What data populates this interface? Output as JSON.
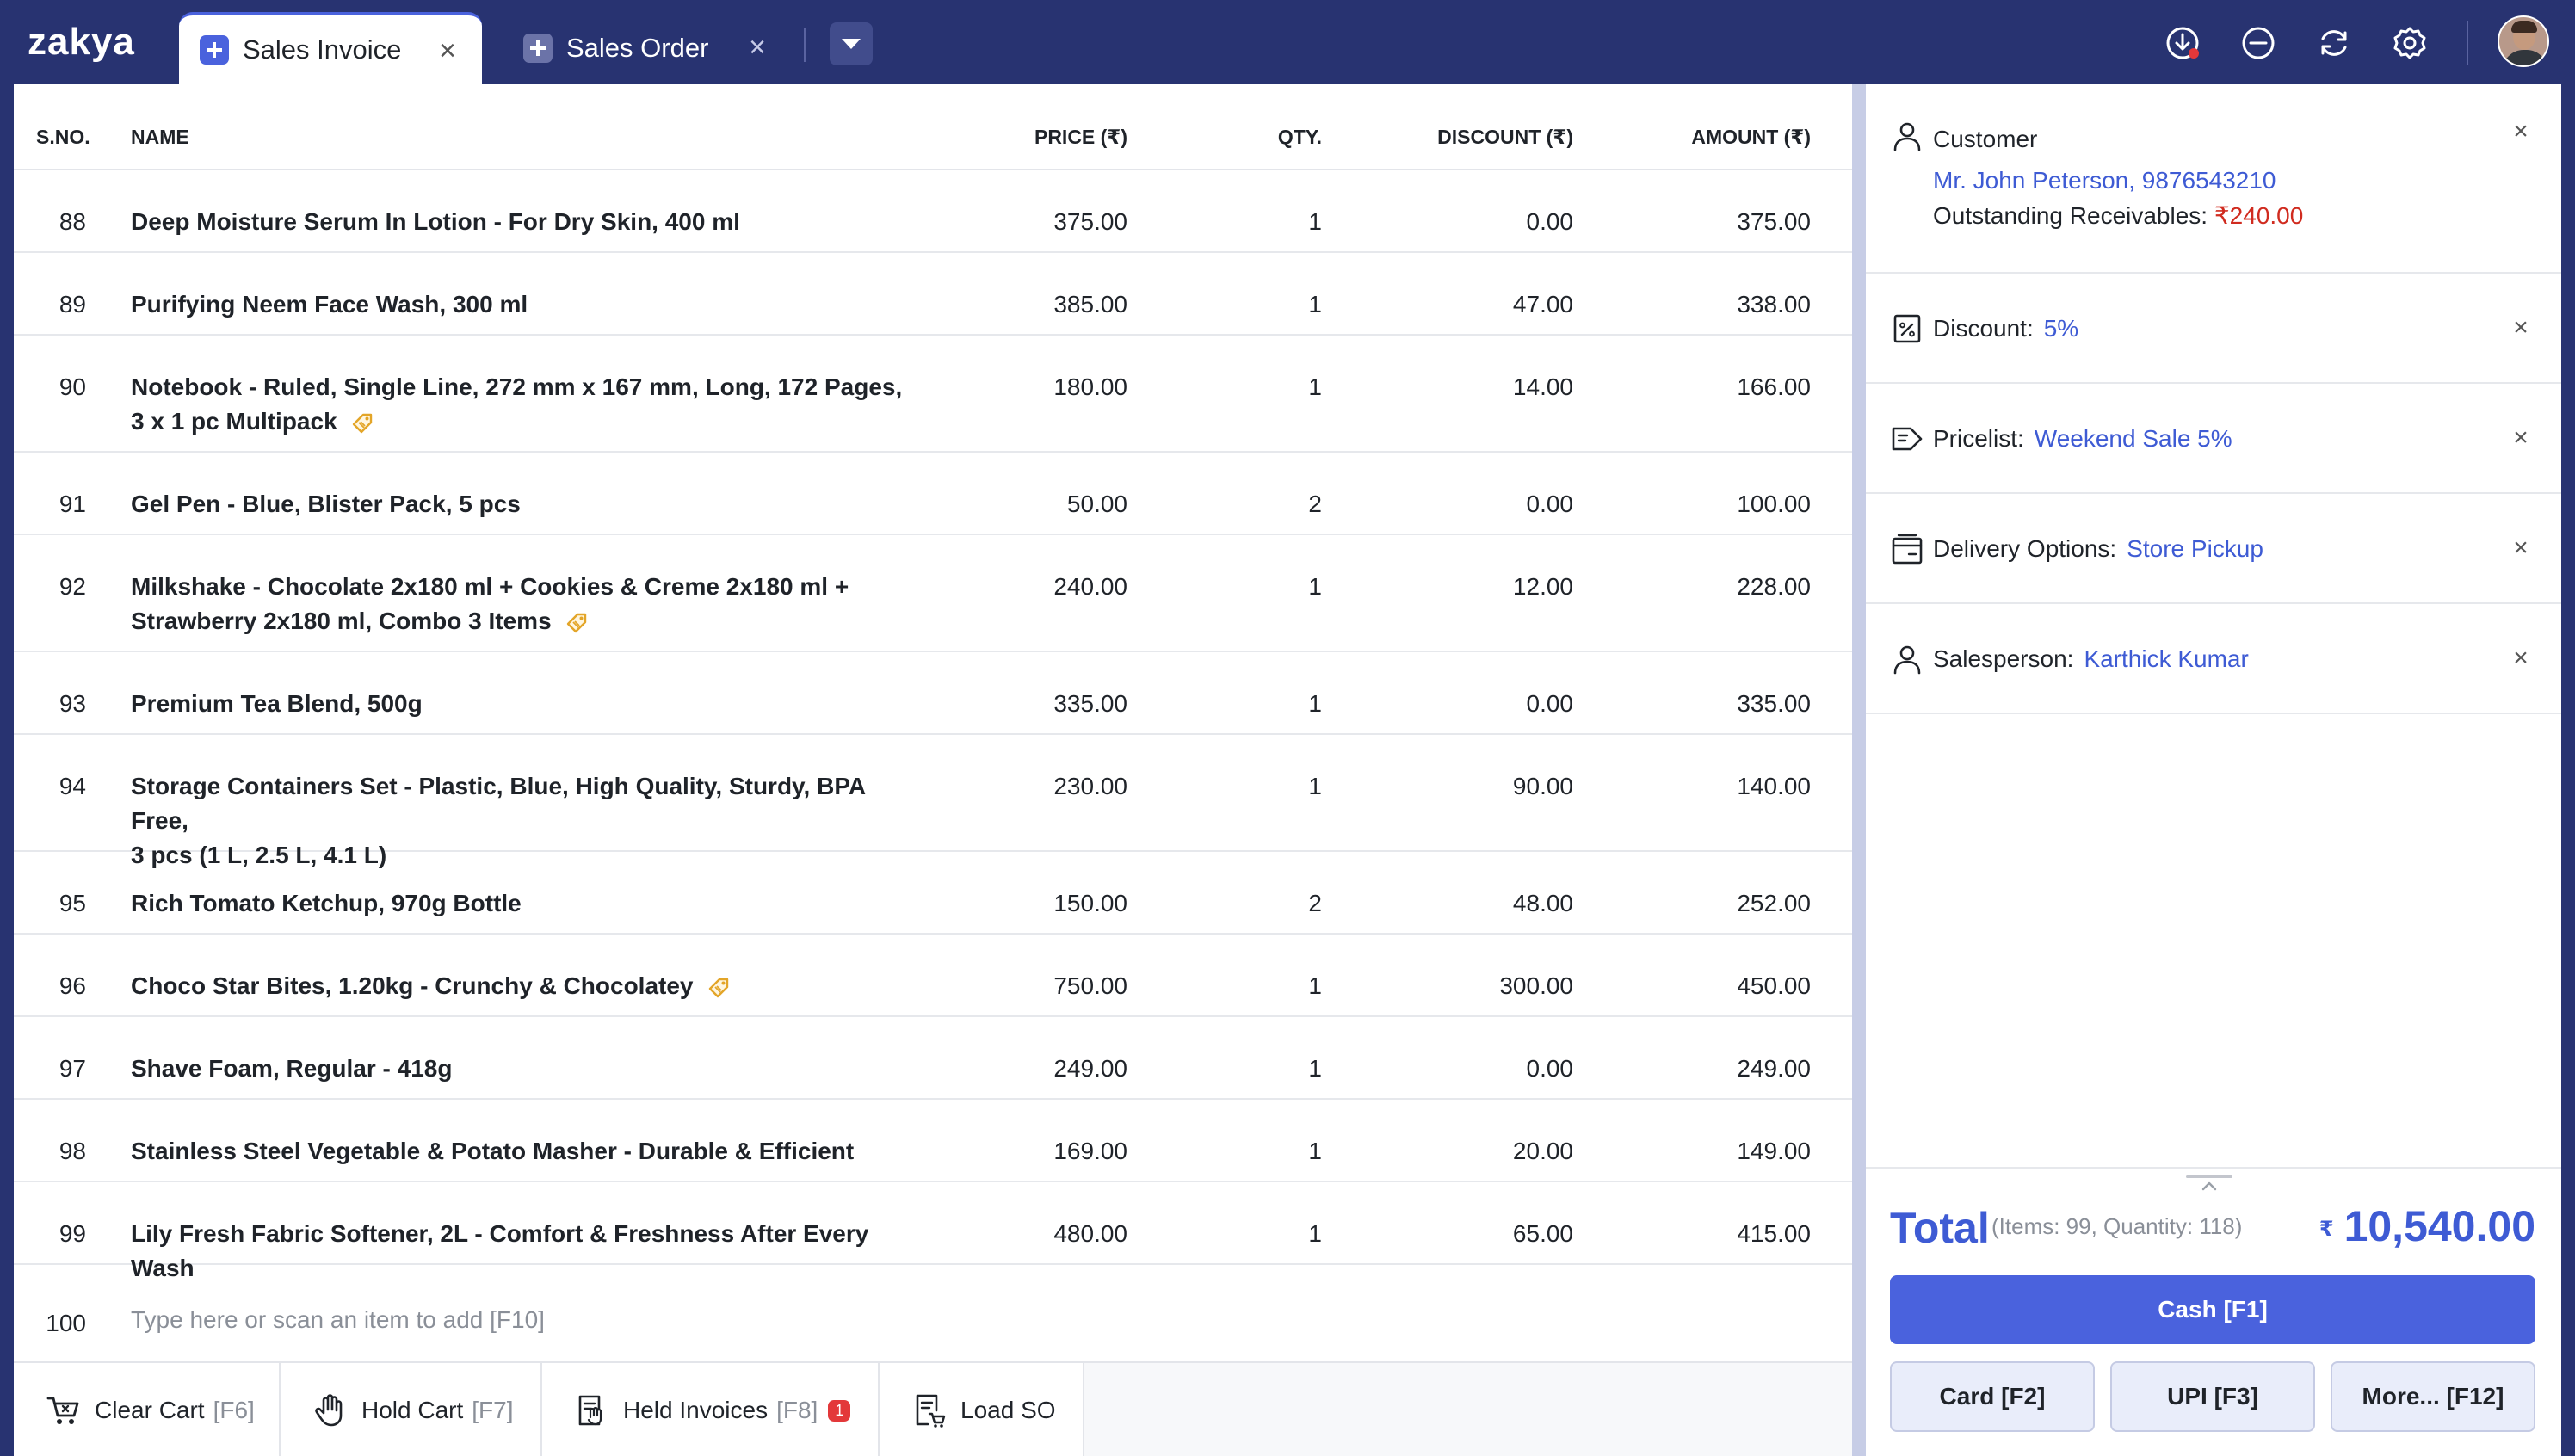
{
  "app": {
    "logo": "zakya"
  },
  "tabs": [
    {
      "label": "Sales Invoice",
      "active": true
    },
    {
      "label": "Sales Order",
      "active": false
    }
  ],
  "topbar_icons": [
    "download-icon",
    "minimize-icon",
    "sync-icon",
    "settings-icon",
    "user-avatar"
  ],
  "table": {
    "headers": {
      "sno": "S.NO.",
      "name": "NAME",
      "price": "PRICE (₹)",
      "qty": "QTY.",
      "discount": "DISCOUNT (₹)",
      "amount": "AMOUNT (₹)"
    },
    "rows": [
      {
        "sno": "88",
        "name": "Deep Moisture Serum In Lotion - For Dry Skin, 400 ml",
        "price": "375.00",
        "qty": "1",
        "discount": "0.00",
        "amount": "375.00",
        "offer": false
      },
      {
        "sno": "89",
        "name": "Purifying Neem Face Wash, 300 ml",
        "price": "385.00",
        "qty": "1",
        "discount": "47.00",
        "amount": "338.00",
        "offer": false
      },
      {
        "sno": "90",
        "name_line1": "Notebook - Ruled, Single Line, 272 mm x 167 mm, Long, 172 Pages,",
        "name_line2": "3 x 1 pc Multipack",
        "price": "180.00",
        "qty": "1",
        "discount": "14.00",
        "amount": "166.00",
        "offer": true
      },
      {
        "sno": "91",
        "name": "Gel Pen - Blue, Blister Pack, 5 pcs",
        "price": "50.00",
        "qty": "2",
        "discount": "0.00",
        "amount": "100.00",
        "offer": false
      },
      {
        "sno": "92",
        "name_line1": "Milkshake - Chocolate 2x180 ml + Cookies & Creme 2x180 ml +",
        "name_line2": "Strawberry 2x180 ml, Combo 3 Items",
        "price": "240.00",
        "qty": "1",
        "discount": "12.00",
        "amount": "228.00",
        "offer": true
      },
      {
        "sno": "93",
        "name": "Premium Tea Blend, 500g",
        "price": "335.00",
        "qty": "1",
        "discount": "0.00",
        "amount": "335.00",
        "offer": false
      },
      {
        "sno": "94",
        "name_line1": "Storage Containers Set - Plastic, Blue, High Quality, Sturdy, BPA Free,",
        "name_line2": "3 pcs (1 L, 2.5 L, 4.1 L)",
        "price": "230.00",
        "qty": "1",
        "discount": "90.00",
        "amount": "140.00",
        "offer": false
      },
      {
        "sno": "95",
        "name": "Rich Tomato Ketchup, 970g Bottle",
        "price": "150.00",
        "qty": "2",
        "discount": "48.00",
        "amount": "252.00",
        "offer": false
      },
      {
        "sno": "96",
        "name": "Choco Star Bites, 1.20kg - Crunchy & Chocolatey",
        "price": "750.00",
        "qty": "1",
        "discount": "300.00",
        "amount": "450.00",
        "offer": true
      },
      {
        "sno": "97",
        "name": "Shave Foam, Regular - 418g",
        "price": "249.00",
        "qty": "1",
        "discount": "0.00",
        "amount": "249.00",
        "offer": false
      },
      {
        "sno": "98",
        "name": "Stainless Steel Vegetable & Potato Masher - Durable & Efficient",
        "price": "169.00",
        "qty": "1",
        "discount": "20.00",
        "amount": "149.00",
        "offer": false
      },
      {
        "sno": "99",
        "name": "Lily Fresh Fabric Softener, 2L - Comfort & Freshness After Every Wash",
        "price": "480.00",
        "qty": "1",
        "discount": "65.00",
        "amount": "415.00",
        "offer": false
      }
    ],
    "add_row": {
      "sno": "100",
      "placeholder": "Type here or scan an item to add [F10]"
    }
  },
  "bottom_actions": [
    {
      "label": "Clear Cart",
      "key": "[F6]"
    },
    {
      "label": "Hold Cart",
      "key": "[F7]"
    },
    {
      "label": "Held Invoices",
      "key": "[F8]",
      "badge": "1"
    },
    {
      "label": "Load SO",
      "key": ""
    }
  ],
  "side": {
    "customer": {
      "label": "Customer",
      "name": "Mr. John Peterson, 9876543210",
      "outstanding_label": "Outstanding Receivables:",
      "outstanding_value": "₹240.00"
    },
    "discount": {
      "label": "Discount:",
      "value": "5%"
    },
    "pricelist": {
      "label": "Pricelist:",
      "value": "Weekend Sale 5%"
    },
    "delivery": {
      "label": "Delivery Options:",
      "value": "Store Pickup"
    },
    "salesperson": {
      "label": "Salesperson:",
      "value": "Karthick Kumar"
    }
  },
  "summary": {
    "total_label": "Total",
    "total_sub": "(Items: 99, Quantity: 118)",
    "currency": "₹",
    "total_amount": "10,540.00"
  },
  "payment": {
    "cash": "Cash [F1]",
    "card": "Card [F2]",
    "upi": "UPI [F3]",
    "more": "More... [F12]"
  },
  "colors": {
    "brand_navy": "#283371",
    "accent_blue": "#4a62dd",
    "link_blue": "#3e5bd4",
    "alert_red": "#d02b1f"
  }
}
